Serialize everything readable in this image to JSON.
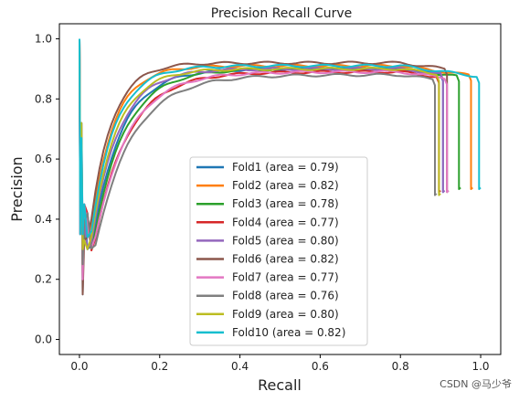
{
  "chart_data": {
    "type": "line",
    "title": "Precision Recall Curve",
    "xlabel": "Recall",
    "ylabel": "Precision",
    "xlim": [
      -0.05,
      1.05
    ],
    "ylim": [
      -0.05,
      1.05
    ],
    "xticks": [
      "0.0",
      "0.2",
      "0.4",
      "0.6",
      "0.8",
      "1.0"
    ],
    "yticks": [
      "0.0",
      "0.2",
      "0.4",
      "0.6",
      "0.8",
      "1.0"
    ],
    "grid": false,
    "legend_position": "lower-center",
    "series": [
      {
        "name": "Fold1 (area = 0.79)",
        "color": "#1f77b4",
        "k": 14,
        "plateau": 0.9,
        "end_recall": 0.91,
        "tail": 0.49
      },
      {
        "name": "Fold2 (area = 0.82)",
        "color": "#ff7f0e",
        "k": 18,
        "plateau": 0.91,
        "end_recall": 0.98,
        "tail": 0.5
      },
      {
        "name": "Fold3 (area = 0.78)",
        "color": "#2ca02c",
        "k": 13,
        "plateau": 0.9,
        "end_recall": 0.95,
        "tail": 0.5
      },
      {
        "name": "Fold4 (area = 0.77)",
        "color": "#d62728",
        "k": 12,
        "plateau": 0.89,
        "end_recall": 0.9,
        "tail": 0.49
      },
      {
        "name": "Fold5 (area = 0.80)",
        "color": "#9467bd",
        "k": 15,
        "plateau": 0.9,
        "end_recall": 0.91,
        "tail": 0.49
      },
      {
        "name": "Fold6 (area = 0.82)",
        "color": "#8c564b",
        "k": 19,
        "plateau": 0.92,
        "end_recall": 0.92,
        "tail": 0.49
      },
      {
        "name": "Fold7 (area = 0.77)",
        "color": "#e377c2",
        "k": 12,
        "plateau": 0.89,
        "end_recall": 0.92,
        "tail": 0.49
      },
      {
        "name": "Fold8 (area = 0.76)",
        "color": "#7f7f7f",
        "k": 11,
        "plateau": 0.88,
        "end_recall": 0.89,
        "tail": 0.48
      },
      {
        "name": "Fold9 (area = 0.80)",
        "color": "#bcbd22",
        "k": 16,
        "plateau": 0.9,
        "end_recall": 0.9,
        "tail": 0.48
      },
      {
        "name": "Fold10 (area = 0.82)",
        "color": "#17becf",
        "k": 17,
        "plateau": 0.91,
        "end_recall": 1.0,
        "tail": 0.5
      }
    ]
  },
  "watermark": "CSDN @马少爷"
}
